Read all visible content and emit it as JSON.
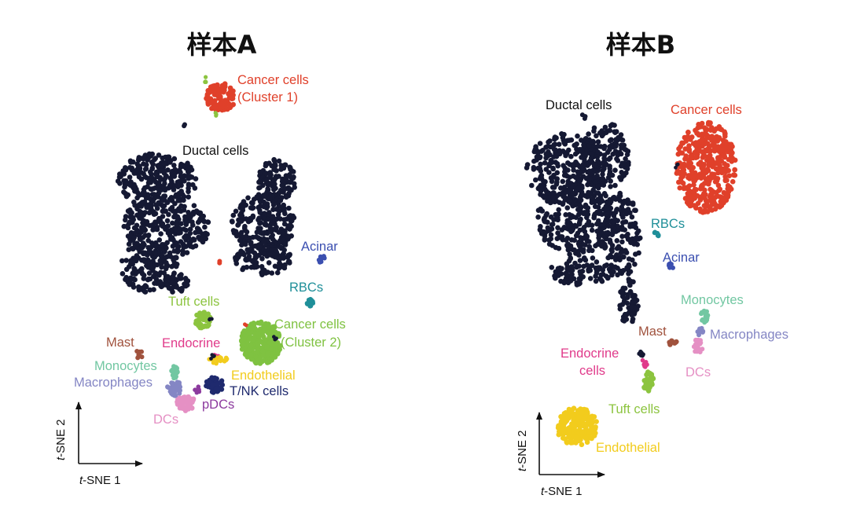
{
  "chart_data": [
    {
      "type": "scatter",
      "title": "样本A",
      "xlabel_italic": "t",
      "xlabel_rest": "-SNE 1",
      "ylabel_italic": "t",
      "ylabel_rest": "-SNE 2",
      "clusters": [
        {
          "name": "Cancer cells",
          "name2": "(Cluster 1)",
          "color": "#e0402a"
        },
        {
          "name": "Ductal cells",
          "color": "#151933"
        },
        {
          "name": "Acinar",
          "color": "#3b4fb0"
        },
        {
          "name": "RBCs",
          "color": "#1f8f99"
        },
        {
          "name": "Tuft cells",
          "color": "#8cc43f"
        },
        {
          "name": "Cancer cells",
          "name2": "(Cluster 2)",
          "color": "#7fc241"
        },
        {
          "name": "Mast",
          "color": "#a0523d"
        },
        {
          "name": "Endocrine",
          "color": "#e03a8a"
        },
        {
          "name": "Endothelial",
          "color": "#f2cc1d"
        },
        {
          "name": "Monocytes",
          "color": "#72c7a2"
        },
        {
          "name": "Macrophages",
          "color": "#8486c4"
        },
        {
          "name": "T/NK cells",
          "color": "#1f2a6e"
        },
        {
          "name": "pDCs",
          "color": "#8c3a9e"
        },
        {
          "name": "DCs",
          "color": "#e590c4"
        }
      ]
    },
    {
      "type": "scatter",
      "title": "样本B",
      "xlabel_italic": "t",
      "xlabel_rest": "-SNE 1",
      "ylabel_italic": "t",
      "ylabel_rest": "-SNE 2",
      "clusters": [
        {
          "name": "Ductal cells",
          "color": "#151933"
        },
        {
          "name": "Cancer cells",
          "color": "#e0402a"
        },
        {
          "name": "RBCs",
          "color": "#1f8f99"
        },
        {
          "name": "Acinar",
          "color": "#3b4fb0"
        },
        {
          "name": "Monocytes",
          "color": "#72c7a2"
        },
        {
          "name": "Macrophages",
          "color": "#8486c4"
        },
        {
          "name": "Mast",
          "color": "#a0523d"
        },
        {
          "name": "DCs",
          "color": "#e590c4"
        },
        {
          "name": "Endocrine",
          "name2": "cells",
          "color": "#e03a8a"
        },
        {
          "name": "Tuft cells",
          "color": "#8cc43f"
        },
        {
          "name": "Endothelial",
          "color": "#f2cc1d"
        }
      ]
    }
  ]
}
